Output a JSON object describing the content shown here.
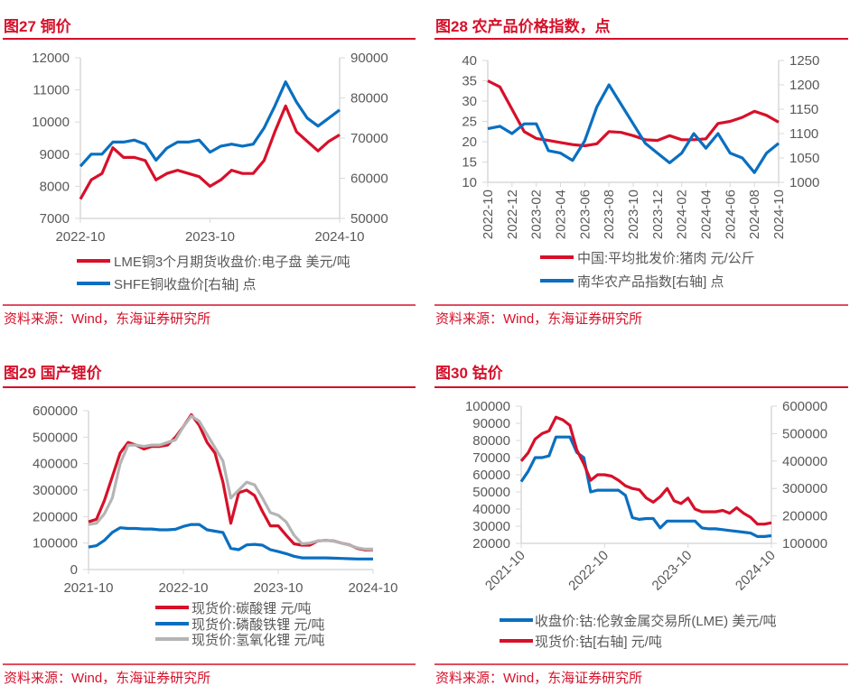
{
  "colors": {
    "accent": "#d7102a",
    "red": "#d7102a",
    "blue": "#0a6fc0",
    "gray": "#b4b4b4",
    "axis": "#d9d9d9"
  },
  "chart_data": [
    {
      "id": "fig27",
      "title": "图27   铜价",
      "source": "资料来源：Wind，东海证券研究所",
      "type": "line",
      "x_ticks": [
        "2022-10",
        "2023-10",
        "2024-10"
      ],
      "xlim": [
        "2022-10",
        "2024-10"
      ],
      "y_left": {
        "lim": [
          7000,
          12000
        ],
        "ticks": [
          "7000",
          "8000",
          "9000",
          "10000",
          "11000",
          "12000"
        ]
      },
      "y_right": {
        "lim": [
          50000,
          90000
        ],
        "ticks": [
          "50000",
          "60000",
          "70000",
          "80000",
          "90000"
        ]
      },
      "x": [
        "2022-10",
        "2022-11",
        "2022-12",
        "2023-01",
        "2023-02",
        "2023-03",
        "2023-04",
        "2023-05",
        "2023-06",
        "2023-07",
        "2023-08",
        "2023-09",
        "2023-10",
        "2023-11",
        "2023-12",
        "2024-01",
        "2024-02",
        "2024-03",
        "2024-04",
        "2024-05",
        "2024-06",
        "2024-07",
        "2024-08",
        "2024-09",
        "2024-10"
      ],
      "series": [
        {
          "name": "LME铜3个月期货收盘价:电子盘 美元/吨",
          "axis": "left",
          "color": "#d7102a",
          "values": [
            7600,
            8200,
            8400,
            9200,
            8900,
            8900,
            8800,
            8200,
            8400,
            8500,
            8400,
            8300,
            8000,
            8200,
            8500,
            8400,
            8400,
            8800,
            9700,
            10500,
            9700,
            9400,
            9100,
            9400,
            9600
          ]
        },
        {
          "name": "SHFE铜收盘价[右轴] 点",
          "axis": "right",
          "color": "#0a6fc0",
          "values": [
            63000,
            66000,
            66000,
            69000,
            69000,
            69500,
            68500,
            64500,
            67500,
            69000,
            69000,
            69500,
            66500,
            68000,
            68500,
            68000,
            68500,
            72500,
            78000,
            84000,
            79000,
            75000,
            73000,
            75000,
            77000
          ]
        }
      ]
    },
    {
      "id": "fig28",
      "title": "图28   农产品价格指数，点",
      "source": "资料来源：Wind，东海证券研究所",
      "type": "line",
      "x_ticks": [
        "2022-10",
        "2022-12",
        "2023-02",
        "2023-04",
        "2023-06",
        "2023-08",
        "2023-10",
        "2023-12",
        "2024-02",
        "2024-04",
        "2024-06",
        "2024-08",
        "2024-10"
      ],
      "xlim": [
        "2022-10",
        "2024-10"
      ],
      "y_left": {
        "lim": [
          10,
          40
        ],
        "ticks": [
          "10",
          "15",
          "20",
          "25",
          "30",
          "35",
          "40"
        ]
      },
      "y_right": {
        "lim": [
          1000,
          1250
        ],
        "ticks": [
          "1000",
          "1050",
          "1100",
          "1150",
          "1200",
          "1250"
        ]
      },
      "x": [
        "2022-10",
        "2022-11",
        "2022-12",
        "2023-01",
        "2023-02",
        "2023-03",
        "2023-04",
        "2023-05",
        "2023-06",
        "2023-07",
        "2023-08",
        "2023-09",
        "2023-10",
        "2023-11",
        "2023-12",
        "2024-01",
        "2024-02",
        "2024-03",
        "2024-04",
        "2024-05",
        "2024-06",
        "2024-07",
        "2024-08",
        "2024-09",
        "2024-10"
      ],
      "series": [
        {
          "name": "中国:平均批发价:猪肉 元/公斤",
          "axis": "left",
          "color": "#d7102a",
          "values": [
            35,
            33.5,
            28,
            22.5,
            20.8,
            20.3,
            19.8,
            19.3,
            19,
            19.5,
            22.5,
            22.3,
            21.5,
            20.5,
            20.3,
            21.5,
            20.5,
            20.5,
            20.7,
            24.5,
            25,
            26,
            27.5,
            26.5,
            24.8
          ]
        },
        {
          "name": "南华农产品指数[右轴] 点",
          "axis": "right",
          "color": "#0a6fc0",
          "values": [
            1110,
            1115,
            1100,
            1120,
            1120,
            1065,
            1060,
            1045,
            1085,
            1155,
            1200,
            1160,
            1120,
            1080,
            1060,
            1040,
            1060,
            1100,
            1070,
            1100,
            1060,
            1050,
            1020,
            1060,
            1080
          ]
        }
      ]
    },
    {
      "id": "fig29",
      "title": "图29   国产锂价",
      "source": "资料来源：Wind，东海证券研究所",
      "type": "line",
      "x_ticks": [
        "2021-10",
        "2022-10",
        "2023-10",
        "2024-10"
      ],
      "xlim": [
        "2021-10",
        "2024-10"
      ],
      "y_left": {
        "lim": [
          0,
          600000
        ],
        "ticks": [
          "0",
          "100000",
          "200000",
          "300000",
          "400000",
          "500000",
          "600000"
        ]
      },
      "x": [
        "2021-10",
        "2021-11",
        "2021-12",
        "2022-01",
        "2022-02",
        "2022-03",
        "2022-04",
        "2022-05",
        "2022-06",
        "2022-07",
        "2022-08",
        "2022-09",
        "2022-10",
        "2022-11",
        "2022-12",
        "2023-01",
        "2023-02",
        "2023-03",
        "2023-04",
        "2023-05",
        "2023-06",
        "2023-07",
        "2023-08",
        "2023-09",
        "2023-10",
        "2023-11",
        "2023-12",
        "2024-01",
        "2024-02",
        "2024-03",
        "2024-04",
        "2024-05",
        "2024-06",
        "2024-07",
        "2024-08",
        "2024-09",
        "2024-10"
      ],
      "series": [
        {
          "name": "现货价:碳酸锂 元/吨",
          "axis": "left",
          "color": "#d7102a",
          "values": [
            180000,
            190000,
            260000,
            350000,
            440000,
            480000,
            470000,
            455000,
            465000,
            465000,
            470000,
            500000,
            540000,
            585000,
            545000,
            480000,
            440000,
            330000,
            175000,
            290000,
            300000,
            280000,
            220000,
            165000,
            165000,
            130000,
            97000,
            92000,
            92000,
            108000,
            110000,
            108000,
            100000,
            93000,
            80000,
            74000,
            75000
          ]
        },
        {
          "name": "现货价:磷酸铁锂 元/吨",
          "axis": "left",
          "color": "#0a6fc0",
          "values": [
            85000,
            90000,
            110000,
            140000,
            158000,
            155000,
            155000,
            153000,
            153000,
            150000,
            150000,
            152000,
            163000,
            170000,
            170000,
            150000,
            145000,
            140000,
            80000,
            75000,
            93000,
            95000,
            92000,
            75000,
            68000,
            60000,
            50000,
            44000,
            44000,
            44000,
            44000,
            43000,
            42000,
            41000,
            40000,
            40000,
            40000
          ]
        },
        {
          "name": "现货价:氢氧化锂 元/吨",
          "axis": "left",
          "color": "#b4b4b4",
          "values": [
            170000,
            175000,
            210000,
            270000,
            400000,
            470000,
            470000,
            465000,
            470000,
            470000,
            480000,
            490000,
            540000,
            580000,
            560000,
            510000,
            460000,
            410000,
            270000,
            300000,
            330000,
            320000,
            270000,
            215000,
            205000,
            180000,
            130000,
            97000,
            100000,
            108000,
            110000,
            107000,
            100000,
            92000,
            82000,
            77000,
            77000
          ]
        }
      ]
    },
    {
      "id": "fig30",
      "title": "图30   钴价",
      "source": "资料来源：Wind，东海证券研究所",
      "type": "line",
      "x_ticks": [
        "2021-10",
        "2022-10",
        "2023-10",
        "2024-10"
      ],
      "xlim": [
        "2021-10",
        "2024-10"
      ],
      "y_left": {
        "lim": [
          20000,
          100000
        ],
        "ticks": [
          "20000",
          "30000",
          "40000",
          "50000",
          "60000",
          "70000",
          "80000",
          "90000",
          "100000"
        ]
      },
      "y_right": {
        "lim": [
          100000,
          600000
        ],
        "ticks": [
          "100000",
          "200000",
          "300000",
          "400000",
          "500000",
          "600000"
        ]
      },
      "x": [
        "2021-10",
        "2021-11",
        "2021-12",
        "2022-01",
        "2022-02",
        "2022-03",
        "2022-04",
        "2022-05",
        "2022-06",
        "2022-07",
        "2022-08",
        "2022-09",
        "2022-10",
        "2022-11",
        "2022-12",
        "2023-01",
        "2023-02",
        "2023-03",
        "2023-04",
        "2023-05",
        "2023-06",
        "2023-07",
        "2023-08",
        "2023-09",
        "2023-10",
        "2023-11",
        "2023-12",
        "2024-01",
        "2024-02",
        "2024-03",
        "2024-04",
        "2024-05",
        "2024-06",
        "2024-07",
        "2024-08",
        "2024-09",
        "2024-10"
      ],
      "series": [
        {
          "name": "收盘价:钴:伦敦金属交易所(LME) 美元/吨",
          "axis": "left",
          "color": "#0a6fc0",
          "values": [
            56000,
            62000,
            70000,
            70000,
            71000,
            82000,
            82000,
            82000,
            73000,
            70000,
            50000,
            51000,
            51000,
            51000,
            51000,
            48000,
            35000,
            34000,
            34500,
            34500,
            29000,
            33000,
            33000,
            33000,
            33000,
            33000,
            29000,
            28500,
            28500,
            28000,
            27500,
            27000,
            26500,
            26000,
            24000,
            24000,
            24500
          ]
        },
        {
          "name": "现货价:钴[右轴] 元/吨",
          "axis": "right",
          "color": "#d7102a",
          "values": [
            400000,
            430000,
            480000,
            500000,
            510000,
            560000,
            550000,
            530000,
            440000,
            390000,
            330000,
            350000,
            350000,
            345000,
            330000,
            310000,
            300000,
            295000,
            265000,
            250000,
            270000,
            300000,
            255000,
            245000,
            265000,
            225000,
            215000,
            215000,
            215000,
            220000,
            210000,
            230000,
            210000,
            195000,
            170000,
            170000,
            175000
          ]
        }
      ]
    }
  ]
}
